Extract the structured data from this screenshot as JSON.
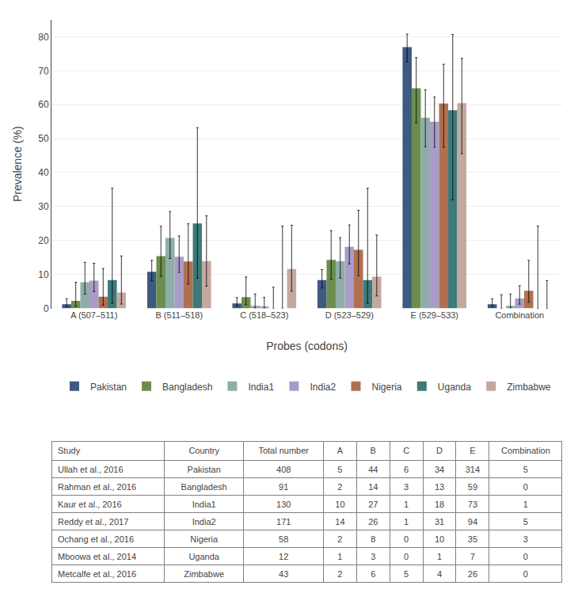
{
  "chart_data": {
    "type": "bar",
    "categories": [
      "A (507–511)",
      "B (511–518)",
      "C (518–523)",
      "D (523–529)",
      "E (529–533)",
      "Combination"
    ],
    "xlabel": "Probes (codons)",
    "ylabel": "Prevalence (%)",
    "ylim": [
      0,
      85
    ],
    "yticks": [
      0,
      10,
      20,
      30,
      40,
      50,
      60,
      70,
      80
    ],
    "grid": true,
    "series": [
      {
        "name": "Pakistan",
        "color": "#3d5a80",
        "values": [
          1.23,
          10.78,
          1.47,
          8.33,
          76.96,
          1.23
        ],
        "error_minus": [
          0.7,
          2.65,
          0.79,
          2.31,
          4.33,
          0.7
        ],
        "error_plus": [
          1.61,
          3.38,
          1.7,
          3.09,
          3.82,
          1.61
        ]
      },
      {
        "name": "Bangladesh",
        "color": "#6b8e4e",
        "values": [
          2.2,
          15.38,
          3.3,
          14.29,
          64.84,
          0
        ],
        "error_minus": [
          1.59,
          5.99,
          2.17,
          5.74,
          10.23,
          0
        ],
        "error_plus": [
          5.47,
          8.8,
          5.95,
          8.64,
          9.03,
          4.05
        ]
      },
      {
        "name": "India1",
        "color": "#8fada8",
        "values": [
          7.69,
          20.77,
          0.77,
          13.85,
          56.15,
          0.77
        ],
        "error_minus": [
          3.46,
          6.08,
          0.63,
          4.91,
          8.58,
          0.63
        ],
        "error_plus": [
          5.89,
          7.76,
          3.46,
          6.98,
          8.23,
          3.46
        ]
      },
      {
        "name": "India2",
        "color": "#a89dc8",
        "values": [
          8.19,
          15.2,
          0.58,
          18.13,
          54.97,
          2.92
        ],
        "error_minus": [
          3.25,
          4.61,
          0.48,
          5.05,
          7.48,
          1.67
        ],
        "error_plus": [
          5.09,
          6.14,
          2.65,
          6.45,
          7.27,
          3.74
        ]
      },
      {
        "name": "Nigeria",
        "color": "#b07050",
        "values": [
          3.45,
          13.79,
          0,
          17.24,
          60.34,
          5.17
        ],
        "error_minus": [
          2.5,
          6.63,
          0,
          7.6,
          12.85,
          3.4
        ],
        "error_plus": [
          8.28,
          11.13,
          6.21,
          11.67,
          11.57,
          8.97
        ]
      },
      {
        "name": "Uganda",
        "color": "#3d7a7a",
        "values": [
          8.33,
          25,
          0,
          8.33,
          58.33,
          0
        ],
        "error_minus": [
          6.85,
          16.11,
          0,
          6.85,
          26.38,
          0
        ],
        "error_plus": [
          27.06,
          28.23,
          24.25,
          27.06,
          22.34,
          24.25
        ]
      },
      {
        "name": "Zimbabwe",
        "color": "#c4a8a0",
        "values": [
          4.65,
          13.95,
          11.63,
          9.3,
          60.47,
          0
        ],
        "error_minus": [
          3.37,
          7.4,
          6.56,
          5.63,
          14.89,
          0
        ],
        "error_plus": [
          10.8,
          13.31,
          12.85,
          12.3,
          13.17,
          8.2
        ]
      }
    ],
    "table": {
      "headers": [
        "Study",
        "Country",
        "Total number",
        "A",
        "B",
        "C",
        "D",
        "E",
        "Combination"
      ],
      "rows": [
        [
          "Ullah et al., 2016",
          "Pakistan",
          "408",
          "5",
          "44",
          "6",
          "34",
          "314",
          "5"
        ],
        [
          "Rahman et al., 2016",
          "Bangladesh",
          "91",
          "2",
          "14",
          "3",
          "13",
          "59",
          "0"
        ],
        [
          "Kaur et al., 2016",
          "India1",
          "130",
          "10",
          "27",
          "1",
          "18",
          "73",
          "1"
        ],
        [
          "Reddy et al., 2017",
          "India2",
          "171",
          "14",
          "26",
          "1",
          "31",
          "94",
          "5"
        ],
        [
          "Ochang et al., 2016",
          "Nigeria",
          "58",
          "2",
          "8",
          "0",
          "10",
          "35",
          "3"
        ],
        [
          "Mboowa et al., 2014",
          "Uganda",
          "12",
          "1",
          "3",
          "0",
          "1",
          "7",
          "0"
        ],
        [
          "Metcalfe et al., 2016",
          "Zimbabwe",
          "43",
          "2",
          "6",
          "5",
          "4",
          "26",
          "0"
        ]
      ]
    }
  }
}
